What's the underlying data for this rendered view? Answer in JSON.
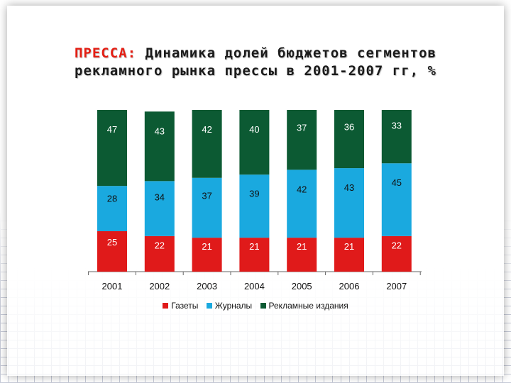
{
  "title": {
    "accent": "ПРЕССА:",
    "line1_rest": " Динамика долей бюджетов сегментов",
    "line2": "рекламного рынка прессы в 2001-2007 гг, %"
  },
  "colors": {
    "newspapers": "#e01a1a",
    "magazines": "#1aa9df",
    "ads": "#0c5a33",
    "accent": "#e41e13"
  },
  "chart_data": {
    "type": "bar",
    "stacked": true,
    "categories": [
      "2001",
      "2002",
      "2003",
      "2004",
      "2005",
      "2006",
      "2007"
    ],
    "series": [
      {
        "name": "Газеты",
        "values": [
          25,
          22,
          21,
          21,
          21,
          21,
          22
        ]
      },
      {
        "name": "Журналы",
        "values": [
          28,
          34,
          37,
          39,
          42,
          43,
          45
        ]
      },
      {
        "name": "Рекламные издания",
        "values": [
          47,
          43,
          42,
          40,
          37,
          36,
          33
        ]
      }
    ],
    "ylim": [
      0,
      100
    ],
    "legend_position": "bottom",
    "grid": false
  }
}
